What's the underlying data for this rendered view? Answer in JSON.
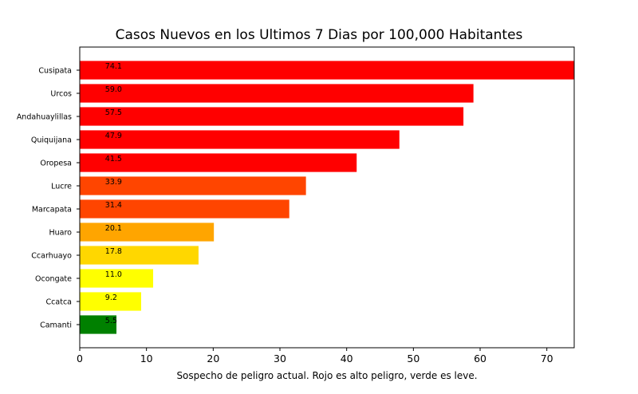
{
  "chart_data": {
    "type": "bar",
    "orientation": "horizontal",
    "title": "Casos Nuevos en los Ultimos 7 Dias por 100,000 Habitantes",
    "xlabel": "Sospecho de peligro actual. Rojo es alto peligro, verde es leve.",
    "ylabel": "",
    "xlim": [
      0,
      74.1
    ],
    "xticks": [
      0,
      10,
      20,
      30,
      40,
      50,
      60,
      70
    ],
    "grid": false,
    "categories": [
      "Cusipata",
      "Urcos",
      "Andahuaylillas",
      "Quiquijana",
      "Oropesa",
      "Lucre",
      "Marcapata",
      "Huaro",
      "Ccarhuayo",
      "Ocongate",
      "Ccatca",
      "Camanti"
    ],
    "values": [
      74.1,
      59.0,
      57.5,
      47.9,
      41.5,
      33.9,
      31.4,
      20.1,
      17.8,
      11.0,
      9.2,
      5.5
    ],
    "value_labels": [
      "74.1",
      "59.0",
      "57.5",
      "47.9",
      "41.5",
      "33.9",
      "31.4",
      "20.1",
      "17.8",
      "11.0",
      "9.2",
      "5.5"
    ],
    "colors": [
      "#ff0000",
      "#ff0000",
      "#ff0000",
      "#ff0000",
      "#ff0000",
      "#ff4500",
      "#ff4500",
      "#ffa500",
      "#ffd700",
      "#ffff00",
      "#ffff00",
      "#008000"
    ]
  }
}
